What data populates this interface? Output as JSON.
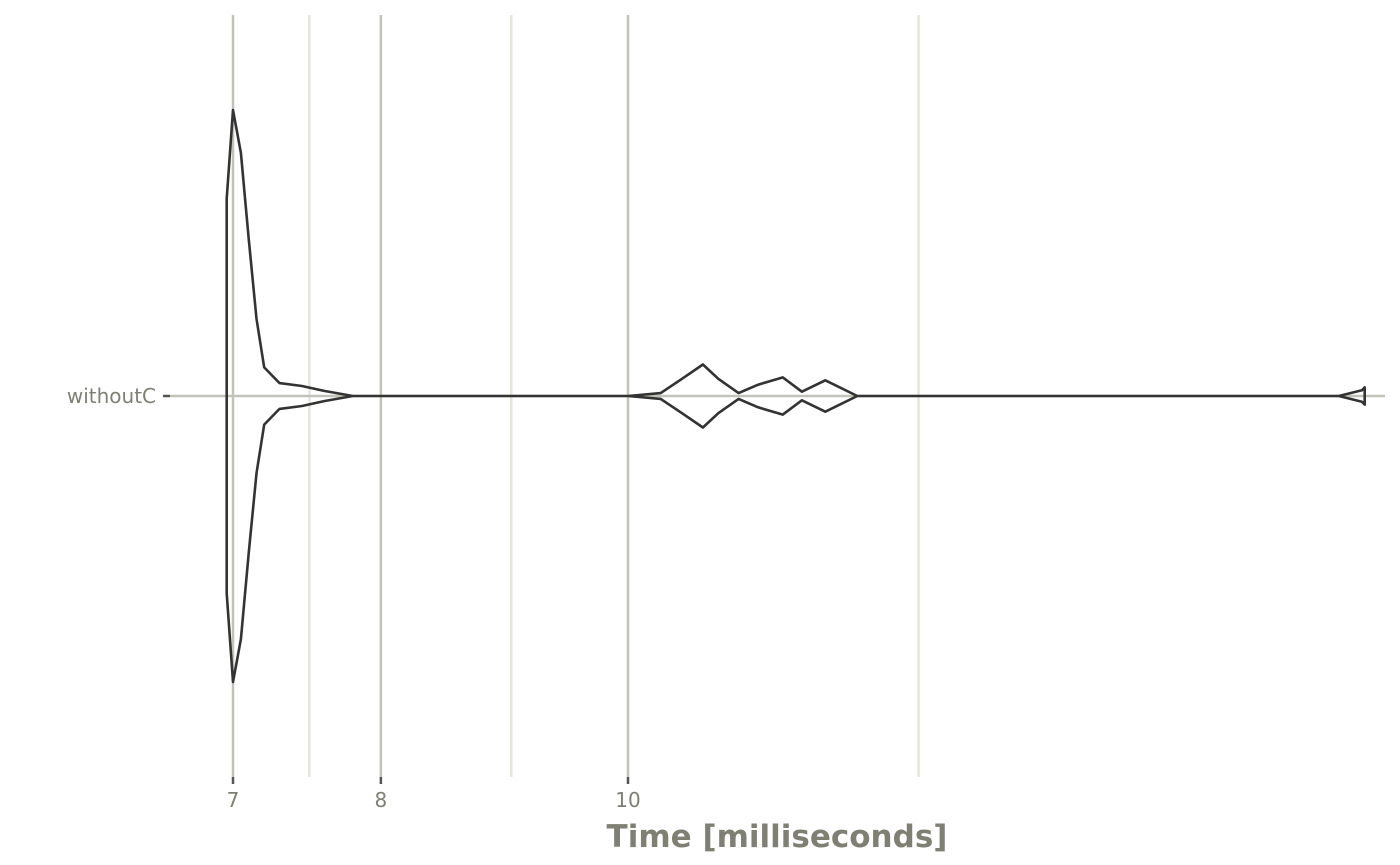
{
  "chart_data": {
    "type": "violin",
    "scale": "log",
    "xlabel": "Time [milliseconds]",
    "ylabel": "",
    "x_ticks": [
      {
        "value": 7,
        "label": "7",
        "major": true
      },
      {
        "value": 8,
        "label": "8",
        "major": true
      },
      {
        "value": 10,
        "label": "10",
        "major": true
      }
    ],
    "x_minor_gridlines": [
      7.5,
      9,
      13
    ],
    "xlim": [
      6.6,
      20.5
    ],
    "grid": true,
    "categories": [
      "withoutC"
    ],
    "series": [
      {
        "name": "withoutC",
        "density": [
          [
            6.96,
            0.69
          ],
          [
            7.0,
            1.0
          ],
          [
            7.05,
            0.85
          ],
          [
            7.1,
            0.55
          ],
          [
            7.15,
            0.27
          ],
          [
            7.2,
            0.1
          ],
          [
            7.3,
            0.045
          ],
          [
            7.45,
            0.035
          ],
          [
            7.6,
            0.018
          ],
          [
            7.8,
            0.0
          ],
          [
            10.0,
            0.0
          ],
          [
            10.3,
            0.01
          ],
          [
            10.5,
            0.06
          ],
          [
            10.7,
            0.11
          ],
          [
            10.85,
            0.06
          ],
          [
            11.05,
            0.01
          ],
          [
            11.25,
            0.04
          ],
          [
            11.5,
            0.065
          ],
          [
            11.7,
            0.015
          ],
          [
            11.95,
            0.055
          ],
          [
            12.3,
            0.0
          ],
          [
            19.0,
            0.0
          ],
          [
            19.4,
            0.02
          ],
          [
            19.45,
            0.03
          ]
        ]
      }
    ],
    "colors": {
      "outline": "#333333",
      "major_grid": "#c2c2b9",
      "minor_grid": "#e5e6db",
      "text": "#7f7f74"
    }
  }
}
